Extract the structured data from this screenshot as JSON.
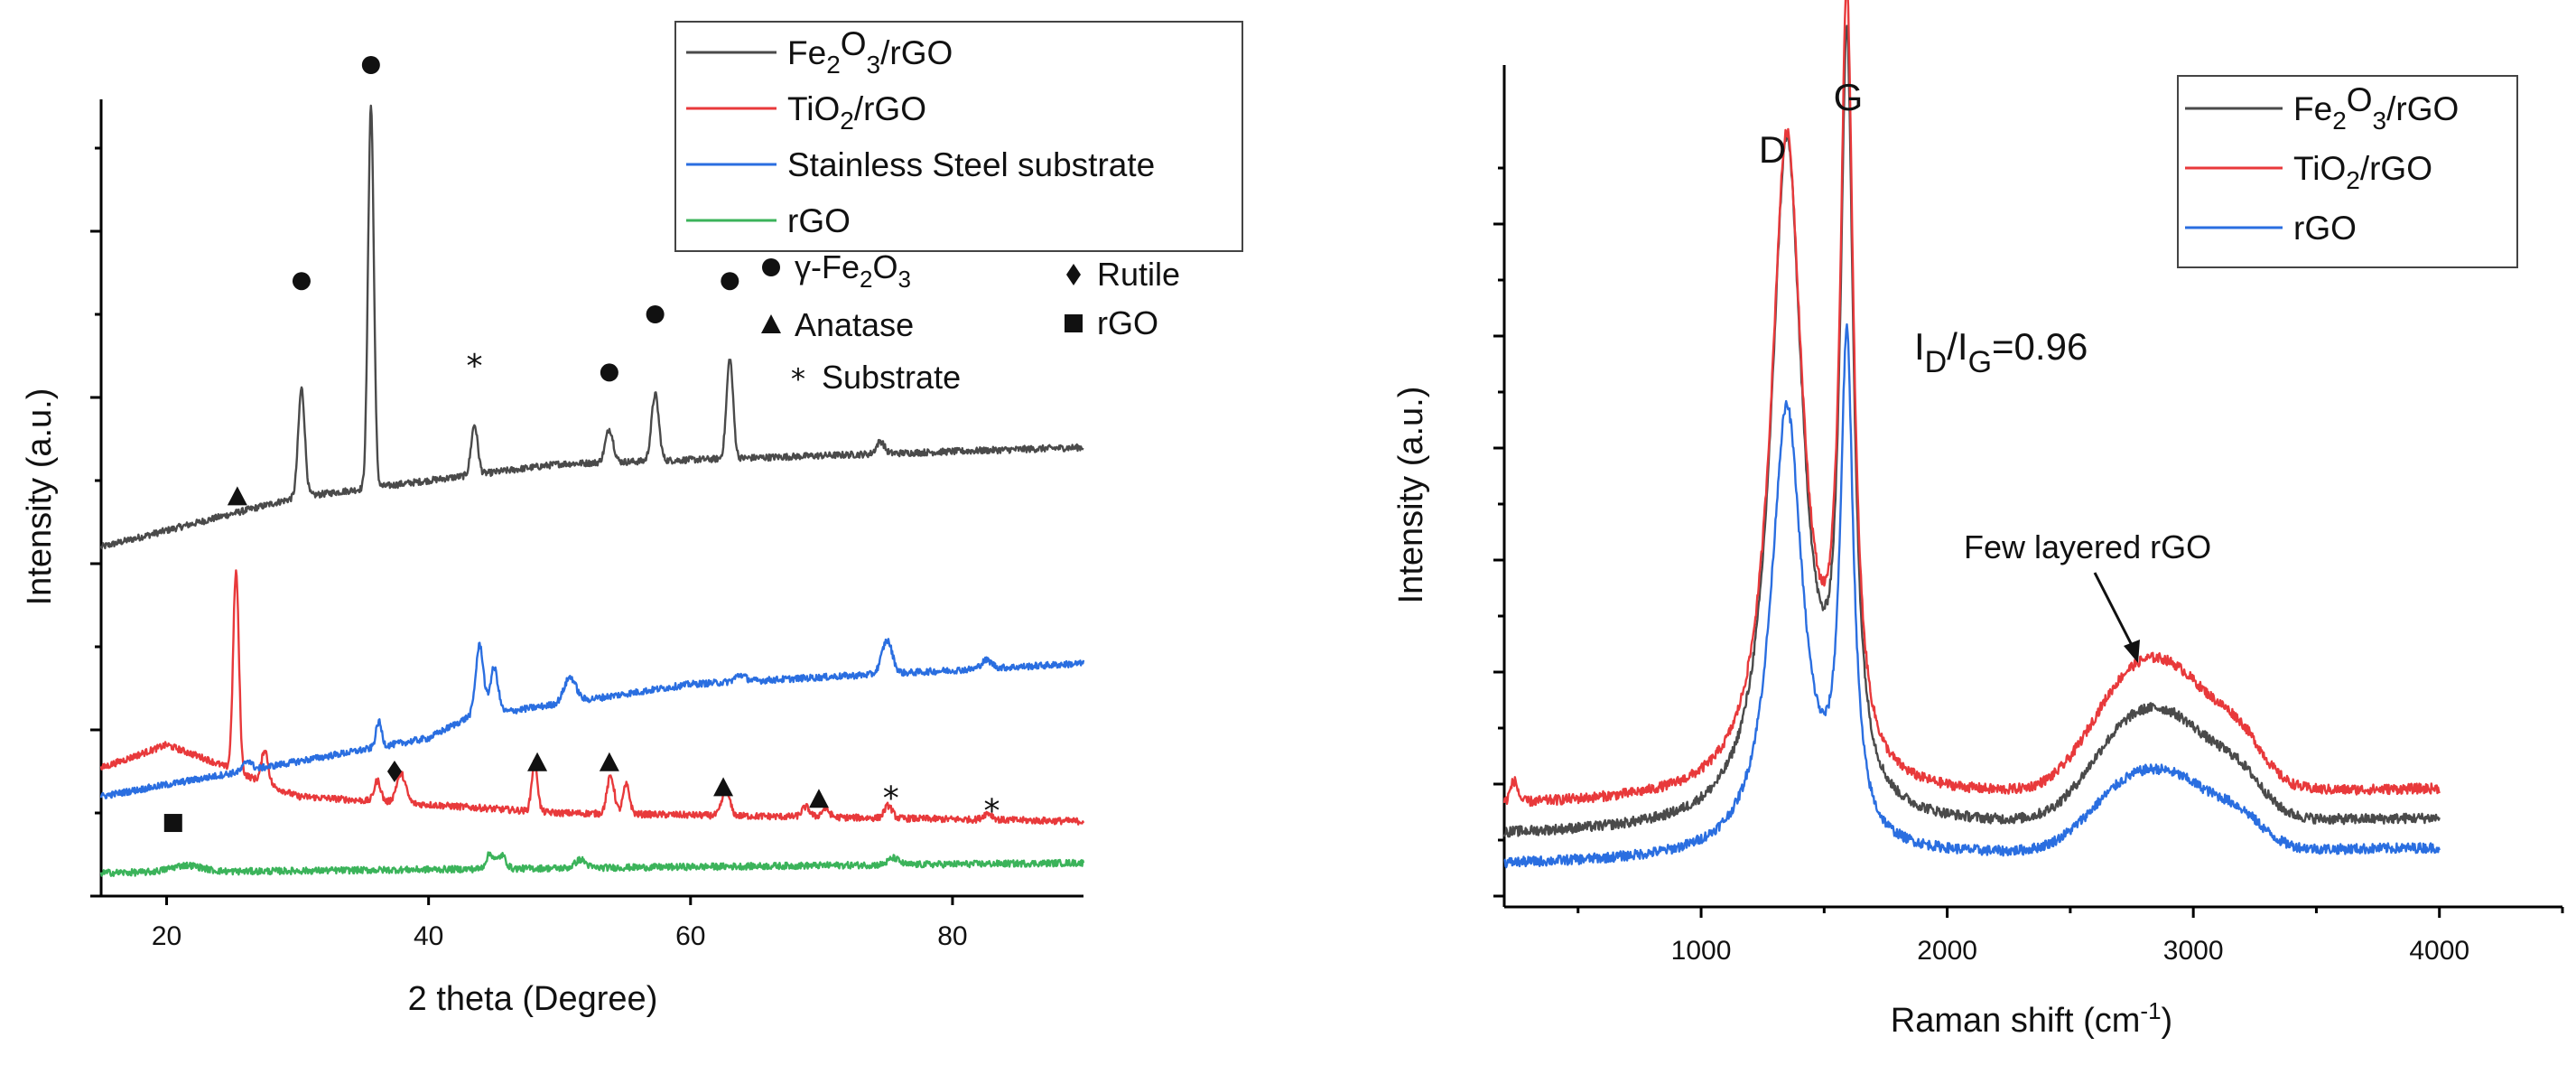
{
  "chart_data": [
    {
      "type": "line",
      "title": "",
      "xlabel": "2 theta (Degree)",
      "ylabel": "Intensity (a.u.)",
      "xlim": [
        15,
        90
      ],
      "xticks": [
        20,
        40,
        60,
        80
      ],
      "series": [
        {
          "name": "Fe2O3/rGO",
          "label_main": "Fe",
          "sub1": "2",
          "mid": "O",
          "sub2": "3",
          "tail": "/rGO",
          "color": "#4a4a4a",
          "baseline": [
            [
              15,
              0.42
            ],
            [
              30,
              0.48
            ],
            [
              50,
              0.52
            ],
            [
              90,
              0.54
            ]
          ],
          "peaks": [
            [
              30.3,
              0.13,
              0.25
            ],
            [
              35.6,
              0.46,
              0.22
            ],
            [
              43.5,
              0.06,
              0.25
            ],
            [
              53.8,
              0.04,
              0.3
            ],
            [
              57.3,
              0.08,
              0.28
            ],
            [
              63.0,
              0.12,
              0.25
            ],
            [
              74.5,
              0.015,
              0.3
            ]
          ]
        },
        {
          "name": "TiO2/rGO",
          "label_main": "TiO",
          "sub1": "2",
          "mid": "",
          "sub2": "",
          "tail": "/rGO",
          "color": "#e8393b",
          "baseline": [
            [
              15,
              0.154
            ],
            [
              20,
              0.182
            ],
            [
              23,
              0.165
            ],
            [
              30,
              0.12
            ],
            [
              50,
              0.1
            ],
            [
              90,
              0.09
            ]
          ],
          "peaks": [
            [
              25.3,
              0.24,
              0.22
            ],
            [
              27.5,
              0.04,
              0.25
            ],
            [
              36.1,
              0.025,
              0.25
            ],
            [
              37.9,
              0.035,
              0.35
            ],
            [
              48.1,
              0.06,
              0.22
            ],
            [
              53.9,
              0.045,
              0.28
            ],
            [
              55.1,
              0.035,
              0.25
            ],
            [
              62.7,
              0.03,
              0.3
            ],
            [
              68.8,
              0.012,
              0.3
            ],
            [
              70.3,
              0.01,
              0.3
            ],
            [
              75.1,
              0.015,
              0.3
            ],
            [
              82.7,
              0.008,
              0.35
            ]
          ]
        },
        {
          "name": "Stainless Steel substrate",
          "label_main": "Stainless Steel substrate",
          "sub1": "",
          "mid": "",
          "sub2": "",
          "tail": "",
          "color": "#2a6ee0",
          "baseline": [
            [
              15,
              0.12
            ],
            [
              40,
              0.19
            ],
            [
              43,
              0.215
            ],
            [
              60,
              0.255
            ],
            [
              90,
              0.28
            ]
          ],
          "peaks": [
            [
              26.2,
              0.012,
              0.3
            ],
            [
              36.2,
              0.03,
              0.22
            ],
            [
              43.9,
              0.085,
              0.3
            ],
            [
              45.0,
              0.055,
              0.3
            ],
            [
              50.8,
              0.03,
              0.45
            ],
            [
              63.8,
              0.008,
              0.4
            ],
            [
              75.0,
              0.04,
              0.4
            ],
            [
              82.6,
              0.01,
              0.4
            ]
          ]
        },
        {
          "name": "rGO",
          "label_main": "rGO",
          "sub1": "",
          "mid": "",
          "sub2": "",
          "tail": "",
          "color": "#3bb35a",
          "baseline": [
            [
              15,
              0.028
            ],
            [
              90,
              0.04
            ]
          ],
          "peaks": [
            [
              21.5,
              0.008,
              1.2
            ],
            [
              44.7,
              0.018,
              0.3
            ],
            [
              45.6,
              0.016,
              0.3
            ],
            [
              51.6,
              0.01,
              0.4
            ],
            [
              75.5,
              0.008,
              0.4
            ]
          ]
        }
      ],
      "markers": [
        {
          "shape": "circle",
          "x": 30.3,
          "y": 0.74
        },
        {
          "shape": "circle",
          "x": 35.6,
          "y": 1.0
        },
        {
          "shape": "star",
          "x": 43.5,
          "y": 0.64
        },
        {
          "shape": "circle",
          "x": 53.8,
          "y": 0.63
        },
        {
          "shape": "circle",
          "x": 57.3,
          "y": 0.7
        },
        {
          "shape": "circle",
          "x": 63.0,
          "y": 0.74
        },
        {
          "shape": "triangle",
          "x": 25.4,
          "y": 0.48
        },
        {
          "shape": "diamond",
          "x": 37.4,
          "y": 0.15
        },
        {
          "shape": "triangle",
          "x": 48.3,
          "y": 0.16
        },
        {
          "shape": "triangle",
          "x": 53.8,
          "y": 0.16
        },
        {
          "shape": "triangle",
          "x": 62.5,
          "y": 0.13
        },
        {
          "shape": "triangle",
          "x": 69.8,
          "y": 0.116
        },
        {
          "shape": "star",
          "x": 75.3,
          "y": 0.12
        },
        {
          "shape": "star",
          "x": 83.0,
          "y": 0.105
        },
        {
          "shape": "square",
          "x": 20.5,
          "y": 0.088
        }
      ],
      "phase_legend": [
        {
          "shape": "circle",
          "label_a": "γ-Fe",
          "label_sub": "2",
          "label_b": "O",
          "label_sub2": "3"
        },
        {
          "shape": "triangle",
          "label_a": "Anatase"
        },
        {
          "shape": "star",
          "label_a": "Substrate"
        },
        {
          "shape": "diamond",
          "label_a": "Rutile"
        },
        {
          "shape": "square",
          "label_a": "rGO"
        }
      ]
    },
    {
      "type": "line",
      "title": "",
      "xlabel": "Raman shift (cm",
      "xlabel_sup": "-1",
      "xlabel_end": ")",
      "ylabel": "Intensity (a.u.)",
      "xlim": [
        200,
        4500
      ],
      "xticks": [
        1000,
        2000,
        3000,
        4000
      ],
      "series": [
        {
          "name": "Fe2O3/rGO",
          "label_main": "Fe",
          "sub1": "2",
          "mid": "O",
          "sub2": "3",
          "tail": "/rGO",
          "color": "#4a4a4a",
          "offset": 0.085,
          "d": 0.81,
          "g": 0.88,
          "hump": 0.11
        },
        {
          "name": "TiO2/rGO",
          "label_main": "TiO",
          "sub1": "2",
          "mid": "",
          "sub2": "",
          "tail": "/rGO",
          "color": "#e8393b",
          "offset": 0.12,
          "d": 0.78,
          "g": 0.9,
          "hump": 0.13
        },
        {
          "name": "rGO",
          "label_main": "rGO",
          "sub1": "",
          "mid": "",
          "sub2": "",
          "tail": "",
          "color": "#2a6ee0",
          "offset": 0.05,
          "d": 0.53,
          "g": 0.58,
          "hump": 0.08
        }
      ],
      "annotations": {
        "D": "D",
        "G": "G",
        "ratio_I": "I",
        "ratio_sub1": "D",
        "ratio_slash": "/I",
        "ratio_sub2": "G",
        "ratio_value": "=0.96",
        "few_layered": "Few layered rGO"
      }
    }
  ]
}
